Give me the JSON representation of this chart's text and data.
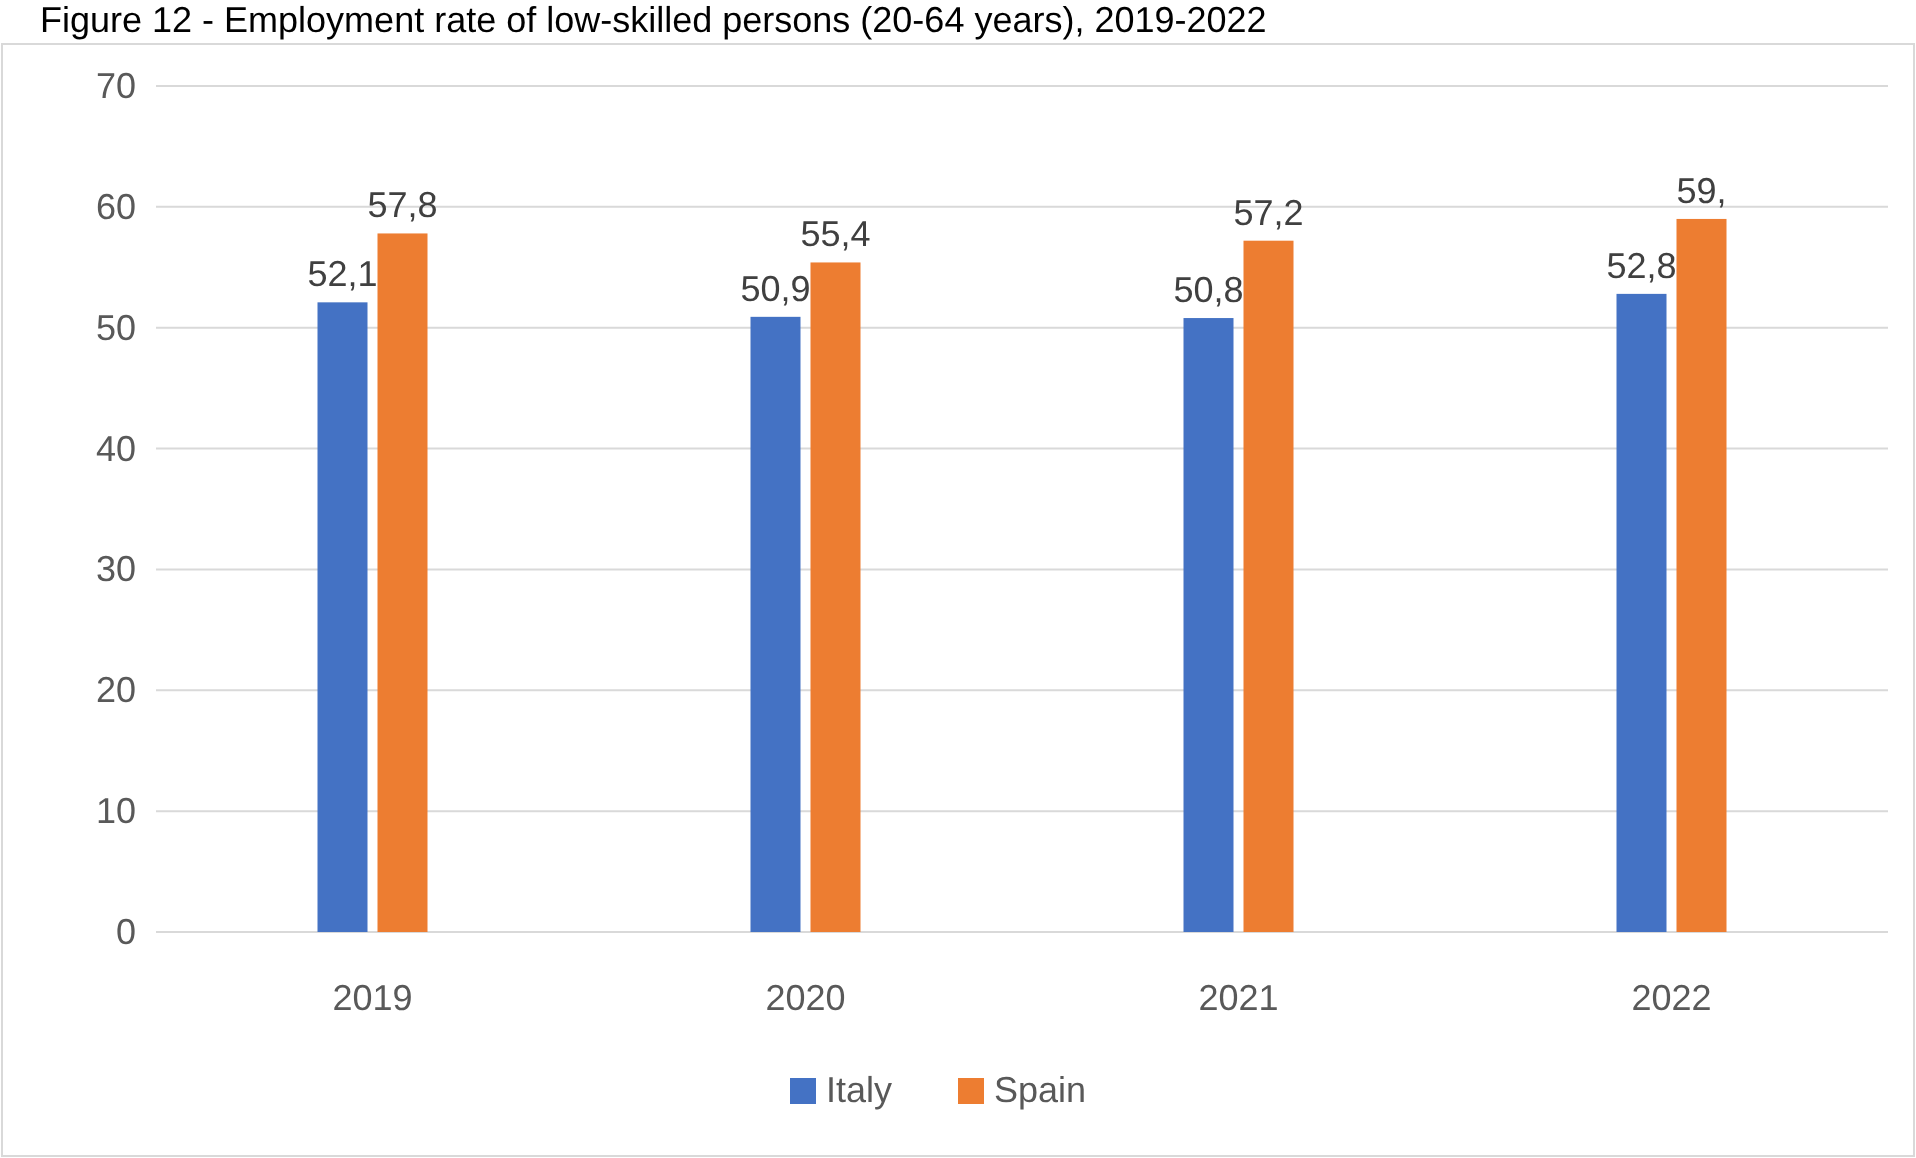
{
  "chart_data": {
    "type": "bar",
    "title": "Figure 12 - Employment rate of low-skilled persons (20-64 years), 2019-2022",
    "categories": [
      "2019",
      "2020",
      "2021",
      "2022"
    ],
    "series": [
      {
        "name": "Italy",
        "color": "#4472c4",
        "values": [
          52.1,
          50.9,
          50.8,
          52.8
        ],
        "value_labels": [
          "52,1",
          "50,9",
          "50,8",
          "52,8"
        ]
      },
      {
        "name": "Spain",
        "color": "#ed7d31",
        "values": [
          57.8,
          55.4,
          57.2,
          59
        ],
        "value_labels": [
          "57,8",
          "55,4",
          "57,2",
          "59,"
        ]
      }
    ],
    "ylim": [
      0,
      70
    ],
    "yticks": [
      0,
      10,
      20,
      30,
      40,
      50,
      60,
      70
    ],
    "grid": "y",
    "legend": "bottom"
  }
}
